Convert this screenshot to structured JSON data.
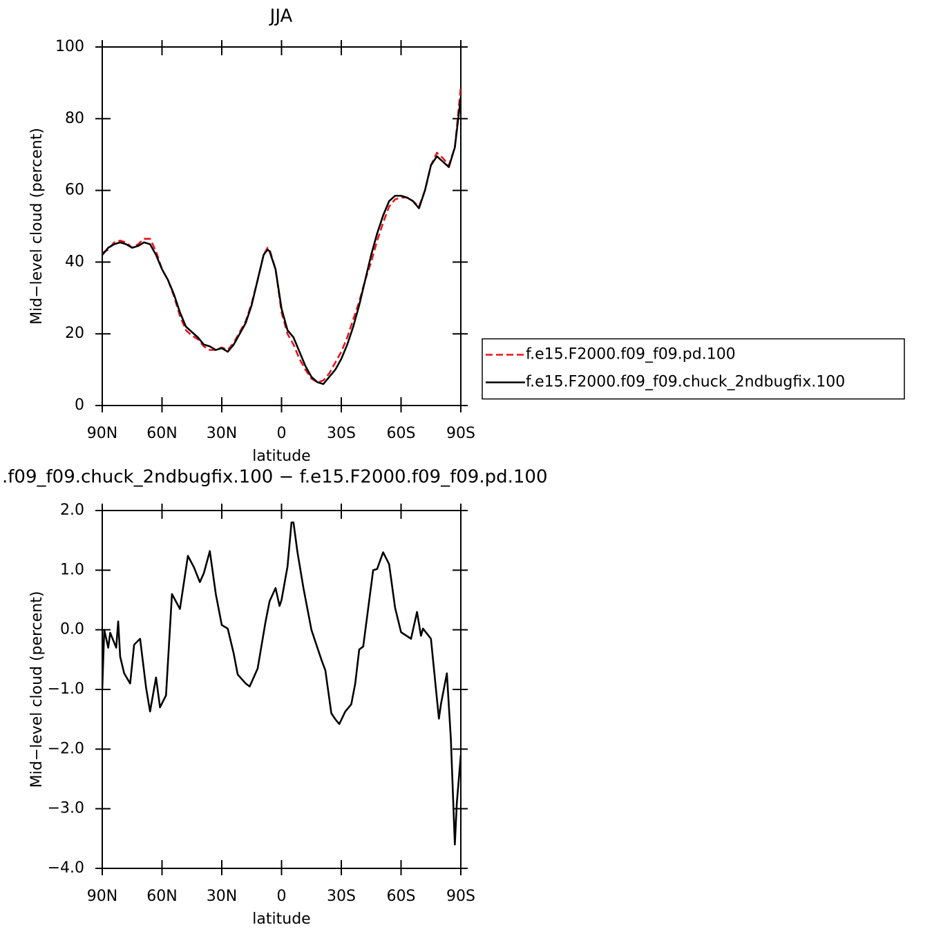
{
  "chart_data": [
    {
      "type": "line",
      "title": "JJA",
      "x_label": "latitude",
      "y_label": "Mid−level cloud (percent)",
      "xlim": [
        90,
        -90
      ],
      "xticks": [
        {
          "value": 90,
          "label": "90N"
        },
        {
          "value": 60,
          "label": "60N"
        },
        {
          "value": 30,
          "label": "30N"
        },
        0,
        {
          "value": -30,
          "label": "30S"
        },
        {
          "value": -60,
          "label": "60S"
        },
        {
          "value": -90,
          "label": "90S"
        }
      ],
      "ylim": [
        0,
        100
      ],
      "yticks": [
        0,
        20,
        40,
        60,
        80,
        100
      ],
      "legend": "right",
      "x": [
        90,
        87,
        84,
        81,
        78,
        75,
        72,
        69,
        66,
        63,
        60,
        57,
        54,
        51,
        48,
        45,
        42,
        39,
        36,
        33,
        30,
        27,
        24,
        21,
        18,
        15,
        12,
        9,
        7,
        6,
        3,
        0,
        -3,
        -6,
        -9,
        -12,
        -15,
        -18,
        -21,
        -24,
        -27,
        -30,
        -33,
        -36,
        -39,
        -42,
        -45,
        -48,
        -51,
        -54,
        -57,
        -60,
        -63,
        -66,
        -69,
        -72,
        -75,
        -78,
        -81,
        -84,
        -87,
        -90
      ],
      "series": [
        {
          "name": "f.e15.F2000.f09_f09.pd.100",
          "color": "#e8141c",
          "linestyle": "dashed",
          "values": [
            42.5,
            43.5,
            45.5,
            46,
            45.5,
            44,
            45,
            46.5,
            46.5,
            43,
            38,
            35,
            30.5,
            25,
            21,
            19.5,
            18.5,
            16.5,
            15.5,
            15.5,
            16.2,
            15.5,
            17.5,
            20.5,
            23.5,
            28.5,
            35,
            42,
            44,
            43.5,
            38,
            26,
            20,
            17,
            13,
            10,
            7.5,
            6.5,
            7,
            9,
            12,
            15,
            19,
            24,
            29,
            35,
            40,
            46,
            51,
            55.5,
            57.5,
            58,
            58,
            57,
            55.5,
            60,
            67,
            70.5,
            69,
            67,
            72,
            89
          ]
        },
        {
          "name": "f.e15.F2000.f09_f09.chuck_2ndbugfix.100",
          "color": "#000000",
          "linestyle": "solid",
          "values": [
            42,
            44,
            45,
            45.5,
            45,
            44,
            44.5,
            45.5,
            45,
            42,
            38,
            35,
            31,
            26,
            22,
            20.5,
            19,
            17,
            16.5,
            15.5,
            16,
            15,
            17,
            20,
            23,
            28,
            35,
            42,
            43.5,
            43,
            38,
            27,
            21,
            19,
            15,
            11,
            8,
            6.5,
            6,
            8,
            10,
            13,
            17,
            22,
            28,
            35,
            42,
            48,
            53,
            57,
            58.5,
            58.5,
            58,
            57,
            55,
            60,
            67,
            69.5,
            68,
            66.5,
            72,
            86
          ]
        }
      ]
    },
    {
      "type": "line",
      "title": ".f09_f09.chuck_2ndbugfix.100 − f.e15.F2000.f09_f09.pd.100",
      "x_label": "latitude",
      "y_label": "Mid−level cloud (percent)",
      "xlim": [
        90,
        -90
      ],
      "xticks": [
        {
          "value": 90,
          "label": "90N"
        },
        {
          "value": 60,
          "label": "60N"
        },
        {
          "value": 30,
          "label": "30N"
        },
        0,
        {
          "value": -30,
          "label": "30S"
        },
        {
          "value": -60,
          "label": "60S"
        },
        {
          "value": -90,
          "label": "90S"
        }
      ],
      "ylim": [
        -4,
        2
      ],
      "yticks": [
        {
          "value": -4,
          "label": "−4.0"
        },
        {
          "value": -3,
          "label": "−3.0"
        },
        {
          "value": -2,
          "label": "−2.0"
        },
        {
          "value": -1,
          "label": "−1.0"
        },
        {
          "value": 0,
          "label": "0.0"
        },
        {
          "value": 1,
          "label": "1.0"
        },
        {
          "value": 2,
          "label": "2.0"
        }
      ],
      "x": [
        90,
        89,
        87,
        86,
        83,
        82,
        81,
        79,
        76,
        74,
        71,
        68,
        66,
        63,
        61,
        58,
        55,
        51,
        47,
        44,
        41,
        39,
        36,
        33,
        30,
        27,
        24,
        22,
        18,
        16,
        12,
        8,
        6,
        3,
        1,
        0,
        -3,
        -5,
        -6,
        -8,
        -11,
        -15,
        -20,
        -22,
        -25,
        -27,
        -29,
        -32,
        -35,
        -37,
        -39,
        -41,
        -46,
        -48,
        -51,
        -54,
        -57,
        -60,
        -65,
        -68,
        -70,
        -71,
        -75,
        -79,
        -80,
        -83,
        -85,
        -87,
        -88,
        -90
      ],
      "series": [
        {
          "color": "#000000",
          "linestyle": "solid",
          "values": [
            -1,
            0,
            -0.3,
            -0.05,
            -0.3,
            0.14,
            -0.45,
            -0.73,
            -0.9,
            -0.25,
            -0.15,
            -0.97,
            -1.37,
            -0.8,
            -1.3,
            -1.1,
            0.6,
            0.35,
            1.24,
            1.05,
            0.8,
            0.95,
            1.32,
            0.6,
            0.08,
            0.02,
            -0.4,
            -0.75,
            -0.9,
            -0.95,
            -0.65,
            0.14,
            0.48,
            0.7,
            0.4,
            0.5,
            1.06,
            1.8,
            1.8,
            1.3,
            0.7,
            0,
            -0.5,
            -0.68,
            -1.4,
            -1.5,
            -1.58,
            -1.37,
            -1.25,
            -0.9,
            -0.33,
            -0.28,
            1,
            1.02,
            1.3,
            1.1,
            0.37,
            -0.04,
            -0.15,
            0.3,
            -0.1,
            0.02,
            -0.15,
            -1.49,
            -1.25,
            -0.73,
            -1.83,
            -3.6,
            -2.9,
            -2.1
          ]
        }
      ]
    }
  ]
}
